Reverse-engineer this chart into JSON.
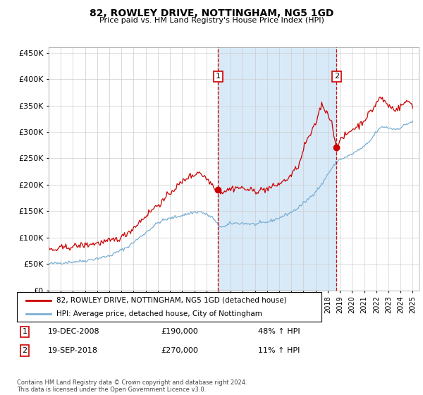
{
  "title": "82, ROWLEY DRIVE, NOTTINGHAM, NG5 1GD",
  "subtitle": "Price paid vs. HM Land Registry's House Price Index (HPI)",
  "legend_line1": "82, ROWLEY DRIVE, NOTTINGHAM, NG5 1GD (detached house)",
  "legend_line2": "HPI: Average price, detached house, City of Nottingham",
  "annotation1_date": "19-DEC-2008",
  "annotation1_price": "£190,000",
  "annotation1_hpi": "48% ↑ HPI",
  "annotation2_date": "19-SEP-2018",
  "annotation2_price": "£270,000",
  "annotation2_hpi": "11% ↑ HPI",
  "footer": "Contains HM Land Registry data © Crown copyright and database right 2024.\nThis data is licensed under the Open Government Licence v3.0.",
  "red_color": "#cc0000",
  "blue_color": "#7bafd4",
  "bg_color": "#d8eaf8",
  "grid_color": "#cccccc",
  "ylim": [
    0,
    460000
  ],
  "yticks": [
    0,
    50000,
    100000,
    150000,
    200000,
    250000,
    300000,
    350000,
    400000,
    450000
  ],
  "purchase1_x": 2008.96,
  "purchase1_y": 190000,
  "purchase2_x": 2018.72,
  "purchase2_y": 270000,
  "shade_xmin": 2008.96,
  "shade_xmax": 2018.72,
  "xlim_min": 1995.0,
  "xlim_max": 2025.5
}
